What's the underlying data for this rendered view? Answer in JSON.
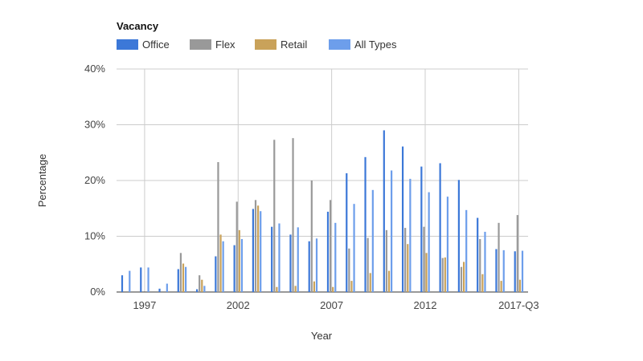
{
  "chart_data": {
    "type": "bar",
    "legend_title": "Vacancy",
    "legend_position": "top-left",
    "xlabel": "Year",
    "ylabel": "Percentage",
    "ylim": [
      0,
      40
    ],
    "y_ticks": [
      0,
      10,
      20,
      30,
      40
    ],
    "y_tick_suffix": "%",
    "grid": true,
    "categories": [
      "1996",
      "1997",
      "1998",
      "1999",
      "2000",
      "2001",
      "2002",
      "2003",
      "2004",
      "2005",
      "2006",
      "2007",
      "2008",
      "2009",
      "2010",
      "2011",
      "2012",
      "2013",
      "2014",
      "2015",
      "2016",
      "2017-Q3"
    ],
    "x_tick_labels": [
      {
        "category": "1997",
        "label": "1997"
      },
      {
        "category": "2002",
        "label": "2002"
      },
      {
        "category": "2007",
        "label": "2007"
      },
      {
        "category": "2012",
        "label": "2012"
      },
      {
        "category": "2017-Q3",
        "label": "2017-Q3"
      }
    ],
    "series": [
      {
        "name": "Office",
        "color": "#3c78d8",
        "values": [
          3.0,
          4.4,
          0.6,
          4.1,
          0.5,
          6.4,
          8.4,
          14.9,
          11.7,
          10.3,
          9.1,
          14.4,
          21.3,
          24.2,
          29.0,
          26.1,
          22.5,
          23.1,
          20.1,
          13.3,
          7.7,
          7.3
        ]
      },
      {
        "name": "Flex",
        "color": "#999999",
        "values": [
          0,
          0,
          0,
          7.0,
          3.0,
          23.3,
          16.2,
          16.5,
          27.3,
          27.6,
          20.0,
          16.5,
          7.8,
          9.7,
          11.1,
          11.5,
          11.7,
          6.1,
          4.5,
          9.5,
          12.4,
          13.8
        ]
      },
      {
        "name": "Retail",
        "color": "#c9a25a",
        "values": [
          0,
          0,
          0,
          5.1,
          2.2,
          10.3,
          11.1,
          15.5,
          0.9,
          1.1,
          1.9,
          0.9,
          2.0,
          3.4,
          3.8,
          8.6,
          7.0,
          6.2,
          5.4,
          3.2,
          2.0,
          2.2
        ]
      },
      {
        "name": "All Types",
        "color": "#6d9eeb",
        "values": [
          3.8,
          4.4,
          1.5,
          4.5,
          1.1,
          9.1,
          9.5,
          14.5,
          12.3,
          11.6,
          9.6,
          12.4,
          15.8,
          18.3,
          21.8,
          20.3,
          17.9,
          17.1,
          14.7,
          10.8,
          7.5,
          7.4
        ]
      }
    ]
  }
}
